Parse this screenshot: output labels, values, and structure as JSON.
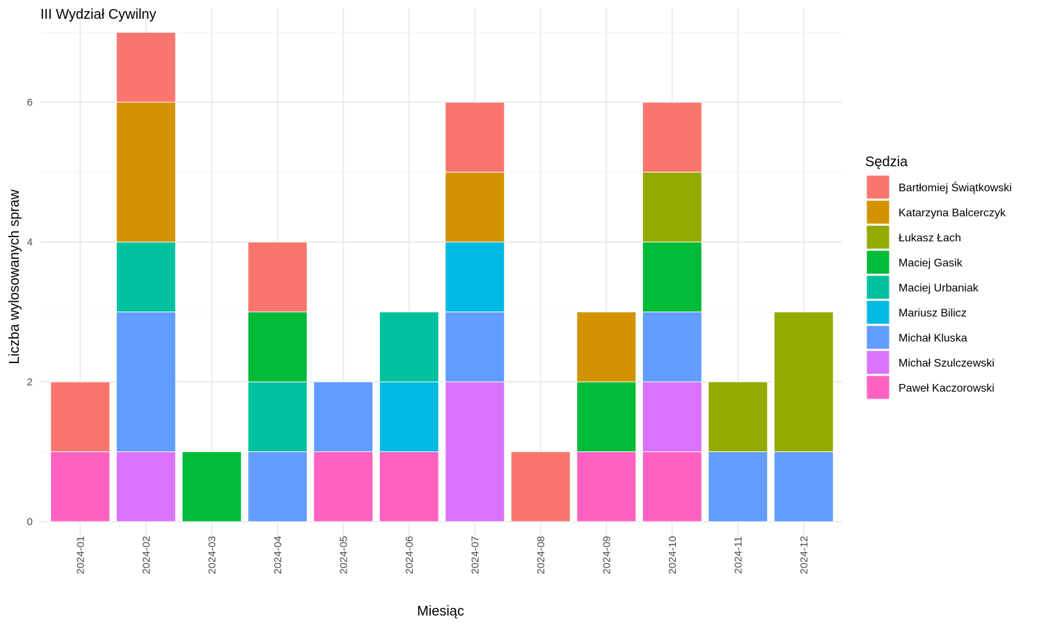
{
  "chart_data": {
    "type": "bar",
    "stacked": true,
    "title": "III Wydział Cywilny",
    "xlabel": "Miesiąc",
    "ylabel": "Liczba wylosowanych spraw",
    "ylim": [
      0,
      7
    ],
    "yticks": [
      0,
      2,
      4,
      6
    ],
    "grid": true,
    "legend_position": "right",
    "legend_title": "Sędzia",
    "categories": [
      "2024-01",
      "2024-02",
      "2024-03",
      "2024-04",
      "2024-05",
      "2024-06",
      "2024-07",
      "2024-08",
      "2024-09",
      "2024-10",
      "2024-11",
      "2024-12"
    ],
    "stack_order": [
      "Paweł Kaczorowski",
      "Michał Szulczewski",
      "Michał Kluska",
      "Mariusz Bilicz",
      "Maciej Urbaniak",
      "Maciej Gasik",
      "Łukasz Łach",
      "Katarzyna Balcerczyk",
      "Bartłomiej Świątkowski"
    ],
    "series": [
      {
        "name": "Bartłomiej Świątkowski",
        "color": "#F8766D",
        "values": [
          1,
          1,
          0,
          1,
          0,
          0,
          1,
          1,
          0,
          1,
          0,
          0
        ]
      },
      {
        "name": "Katarzyna Balcerczyk",
        "color": "#D39200",
        "values": [
          0,
          2,
          0,
          0,
          0,
          0,
          1,
          0,
          1,
          0,
          0,
          0
        ]
      },
      {
        "name": "Łukasz Łach",
        "color": "#93AA00",
        "values": [
          0,
          0,
          0,
          0,
          0,
          0,
          0,
          0,
          0,
          1,
          1,
          2
        ]
      },
      {
        "name": "Maciej Gasik",
        "color": "#00BA38",
        "values": [
          0,
          0,
          1,
          1,
          0,
          0,
          0,
          0,
          1,
          1,
          0,
          0
        ]
      },
      {
        "name": "Maciej Urbaniak",
        "color": "#00C19F",
        "values": [
          0,
          1,
          0,
          1,
          0,
          1,
          0,
          0,
          0,
          0,
          0,
          0
        ]
      },
      {
        "name": "Mariusz Bilicz",
        "color": "#00B9E3",
        "values": [
          0,
          0,
          0,
          0,
          0,
          1,
          1,
          0,
          0,
          0,
          0,
          0
        ]
      },
      {
        "name": "Michał Kluska",
        "color": "#619CFF",
        "values": [
          0,
          2,
          0,
          1,
          1,
          0,
          1,
          0,
          0,
          1,
          1,
          1
        ]
      },
      {
        "name": "Michał Szulczewski",
        "color": "#DB72FB",
        "values": [
          0,
          1,
          0,
          0,
          0,
          0,
          2,
          0,
          0,
          1,
          0,
          0
        ]
      },
      {
        "name": "Paweł Kaczorowski",
        "color": "#FF61C3",
        "values": [
          1,
          0,
          0,
          0,
          1,
          1,
          0,
          0,
          1,
          1,
          0,
          0
        ]
      }
    ]
  }
}
